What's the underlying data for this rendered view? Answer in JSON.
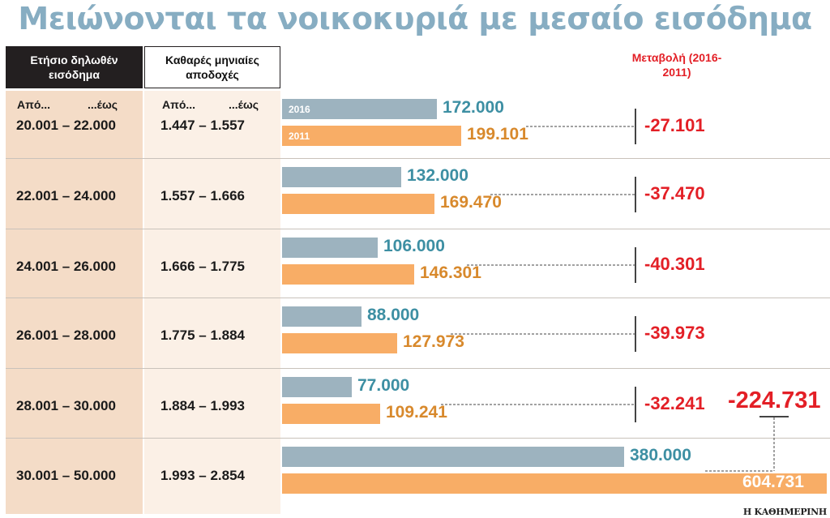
{
  "title": "Μειώνονται τα νοικοκυριά με μεσαίο εισόδημα",
  "headers": {
    "income": "Ετήσιο δηλωθέν εισόδημα",
    "monthly": "Καθαρές μηνιαίες αποδοχές",
    "change": "Μεταβολή (2016-2011)",
    "from": "Από...",
    "to": "...έως"
  },
  "total_change": "-224.731",
  "credit": "Η ΚΑΘΗΜΕΡΙΝΗ",
  "colors": {
    "bar_2016": "#9db3bf",
    "bar_2011": "#f8ad66",
    "change": "#e31f26",
    "title": "#87adc2"
  },
  "chart_data": {
    "type": "bar",
    "orientation": "horizontal",
    "title": "Μειώνονται τα νοικοκυριά με μεσαίο εισόδημα",
    "categories": [
      "20.001 – 22.000",
      "22.001 – 24.000",
      "24.001 – 26.000",
      "26.001 – 28.000",
      "28.001 – 30.000",
      "30.001 – 50.000"
    ],
    "monthly_ranges": [
      "1.447 – 1.557",
      "1.557 – 1.666",
      "1.666 – 1.775",
      "1.775 – 1.884",
      "1.884 – 1.993",
      "1.993 – 2.854"
    ],
    "series": [
      {
        "name": "2016",
        "values": [
          172000,
          132000,
          106000,
          88000,
          77000,
          380000
        ],
        "labels": [
          "172.000",
          "132.000",
          "106.000",
          "88.000",
          "77.000",
          "380.000"
        ]
      },
      {
        "name": "2011",
        "values": [
          199101,
          169470,
          146301,
          127973,
          109241,
          604731
        ],
        "labels": [
          "199.101",
          "169.470",
          "146.301",
          "127.973",
          "109.241",
          "604.731"
        ]
      }
    ],
    "change": [
      -27101,
      -37470,
      -40301,
      -39973,
      -32241
    ],
    "change_labels": [
      "-27.101",
      "-37.470",
      "-40.301",
      "-39.973",
      "-32.241"
    ]
  }
}
